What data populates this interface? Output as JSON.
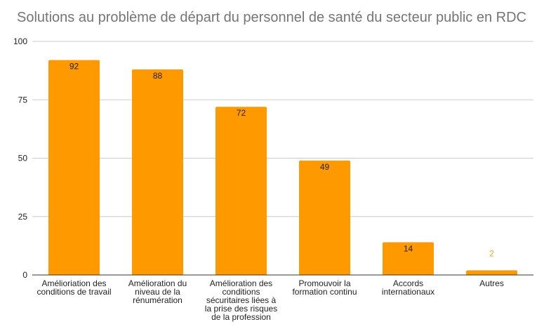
{
  "chart_data": {
    "type": "bar",
    "title": "Solutions au problème de départ du personnel de santé du secteur public en RDC",
    "xlabel": "",
    "ylabel": "",
    "ylim": [
      0,
      100
    ],
    "yticks": [
      0,
      25,
      50,
      75,
      100
    ],
    "grid": true,
    "legend": "none",
    "bar_color": "#ff9900",
    "outside_label_color": "#f4a21f",
    "categories": [
      [
        "Amélioriation des",
        "conditions de travail"
      ],
      [
        "Amélioration du",
        "niveau de la",
        "rénumération"
      ],
      [
        "Amélioration des",
        "conditions",
        "sécuritaires liées à",
        "la prise des risques",
        "de la profession"
      ],
      [
        "Promouvoir la",
        "formation continu"
      ],
      [
        "Accords",
        "internationaux"
      ],
      [
        "Autres"
      ]
    ],
    "values": [
      92,
      88,
      72,
      49,
      14,
      2
    ],
    "data_labels": [
      "92",
      "88",
      "72",
      "49",
      "14",
      "2"
    ]
  }
}
